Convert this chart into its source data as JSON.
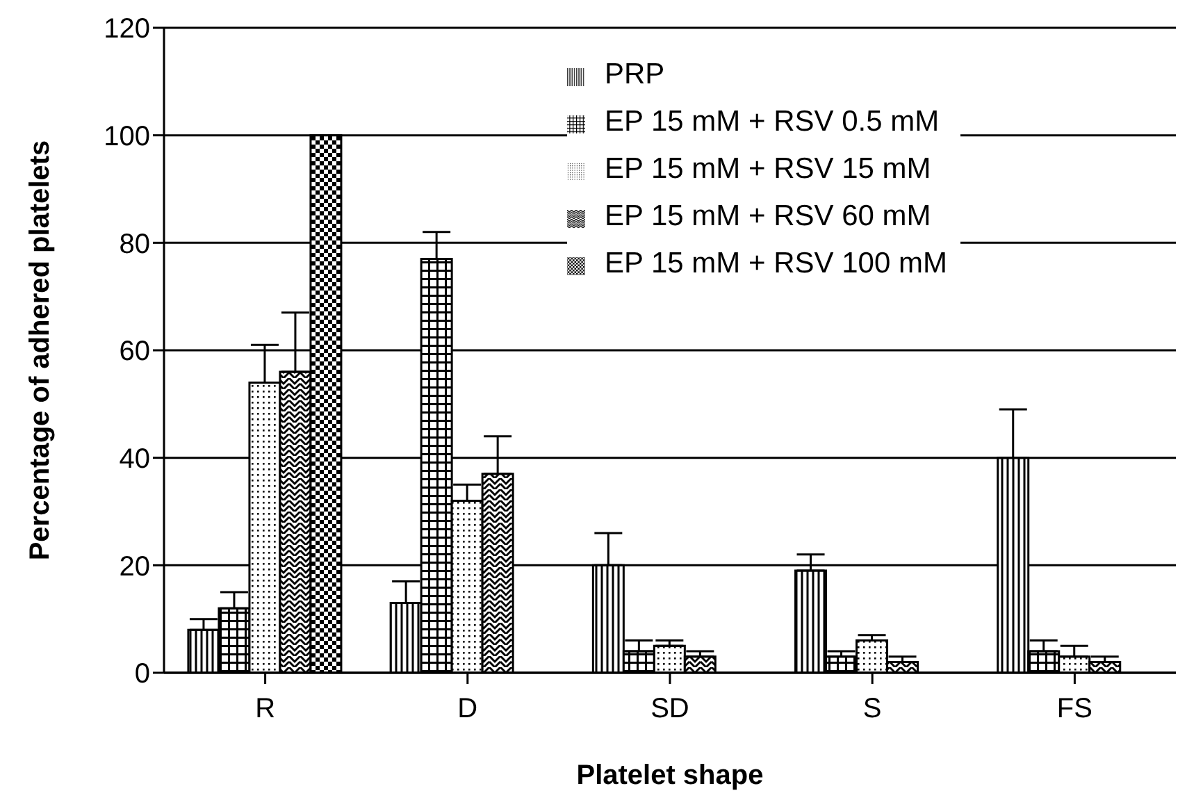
{
  "chart_data": {
    "type": "bar",
    "xlabel": "Platelet shape",
    "ylabel": "Percentage of adhered platelets",
    "categories": [
      "R",
      "D",
      "SD",
      "S",
      "FS"
    ],
    "series": [
      {
        "name": "PRP",
        "color": "#000000",
        "values": [
          8,
          13,
          20,
          19,
          40
        ],
        "errors": [
          [
            8,
            10
          ],
          [
            13,
            17
          ],
          [
            20,
            26
          ],
          [
            19,
            22
          ],
          [
            40,
            49
          ]
        ]
      },
      {
        "name": "EP 15 mM + RSV 0.5 mM",
        "color": "#000000",
        "values": [
          12,
          77,
          4,
          3,
          4
        ],
        "errors": [
          [
            12,
            15
          ],
          [
            77,
            82
          ],
          [
            4,
            6
          ],
          [
            3,
            4
          ],
          [
            4,
            6
          ]
        ]
      },
      {
        "name": "EP 15 mM + RSV 15 mM",
        "color": "#000000",
        "values": [
          54,
          32,
          5,
          6,
          3
        ],
        "errors": [
          [
            54,
            61
          ],
          [
            32,
            35
          ],
          [
            5,
            6
          ],
          [
            6,
            7
          ],
          [
            3,
            5
          ]
        ]
      },
      {
        "name": "EP 15 mM + RSV 60 mM",
        "color": "#000000",
        "values": [
          56,
          37,
          3,
          2,
          2
        ],
        "errors": [
          [
            56,
            67
          ],
          [
            37,
            44
          ],
          [
            3,
            4
          ],
          [
            2,
            3
          ],
          [
            2,
            3
          ]
        ]
      },
      {
        "name": "EP 15 mM + RSV 100 mM",
        "color": "#000000",
        "values": [
          100,
          null,
          null,
          null,
          null
        ]
      }
    ],
    "ylim": [
      0,
      120
    ],
    "yticks": [
      0,
      20,
      40,
      60,
      80,
      100,
      120
    ],
    "grid": "y",
    "legend": "top right"
  }
}
